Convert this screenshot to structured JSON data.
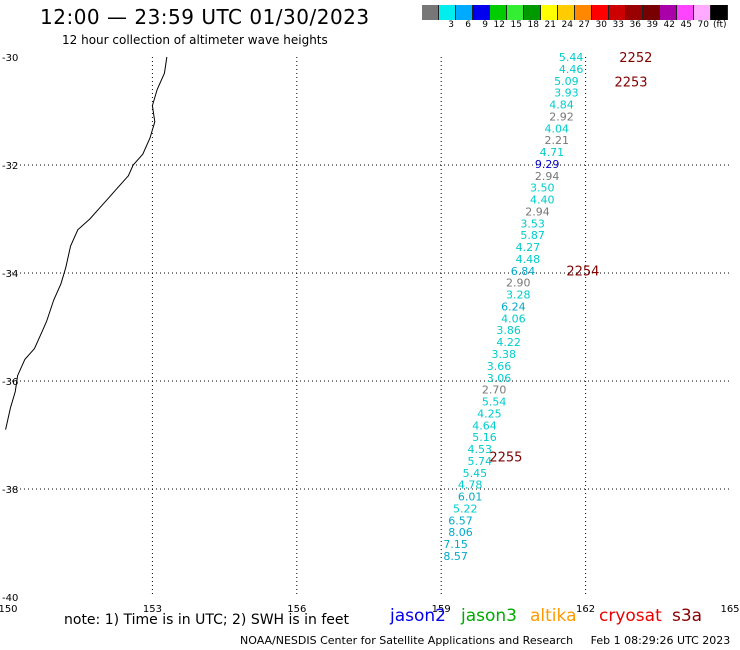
{
  "header": {
    "title": "12:00 — 23:59 UTC 01/30/2023",
    "subtitle": "12 hour collection of altimeter wave heights"
  },
  "color_scale": {
    "colors": [
      "#777777",
      "#00eeee",
      "#00aaff",
      "#0000ee",
      "#00cc00",
      "#33ee33",
      "#009900",
      "#ffff00",
      "#ffcc00",
      "#ff8800",
      "#ff0000",
      "#cc0000",
      "#990000",
      "#770000",
      "#aa00aa",
      "#ff44ff",
      "#ffaaff",
      "#000000"
    ],
    "ticks": [
      "3",
      "6",
      "9",
      "12",
      "15",
      "18",
      "21",
      "24",
      "27",
      "30",
      "33",
      "36",
      "39",
      "42",
      "45",
      "70"
    ],
    "unit": "(ft)"
  },
  "axes": {
    "x_ticks": [
      "150",
      "153",
      "156",
      "159",
      "162",
      "165"
    ],
    "y_ticks": [
      "-30",
      "-32",
      "-34",
      "-36",
      "-38",
      "-40"
    ]
  },
  "map_data": {
    "lon_range": [
      150,
      165
    ],
    "lat_range": [
      -40,
      -30
    ],
    "time_labels": [
      {
        "text": "2252",
        "lon": 162.7,
        "lat": -30.0
      },
      {
        "text": "2253",
        "lon": 162.6,
        "lat": -30.45
      },
      {
        "text": "2254",
        "lon": 161.6,
        "lat": -33.95
      },
      {
        "text": "2255",
        "lon": 160.0,
        "lat": -37.4
      }
    ],
    "swh_points": [
      {
        "lon": 161.7,
        "lat": -30.0,
        "swh": "5.44",
        "color": "#00cccc"
      },
      {
        "lon": 161.7,
        "lat": -30.22,
        "swh": "4.46",
        "color": "#00cccc"
      },
      {
        "lon": 161.6,
        "lat": -30.44,
        "swh": "5.09",
        "color": "#00cccc"
      },
      {
        "lon": 161.6,
        "lat": -30.66,
        "swh": "3.93",
        "color": "#00cccc"
      },
      {
        "lon": 161.5,
        "lat": -30.88,
        "swh": "4.84",
        "color": "#00cccc"
      },
      {
        "lon": 161.5,
        "lat": -31.1,
        "swh": "2.92",
        "color": "#777777"
      },
      {
        "lon": 161.4,
        "lat": -31.32,
        "swh": "4.04",
        "color": "#00cccc"
      },
      {
        "lon": 161.4,
        "lat": -31.54,
        "swh": "2.21",
        "color": "#777777"
      },
      {
        "lon": 161.3,
        "lat": -31.76,
        "swh": "4.71",
        "color": "#00cccc"
      },
      {
        "lon": 161.2,
        "lat": -31.98,
        "swh": "9.29",
        "color": "#0000cc"
      },
      {
        "lon": 161.2,
        "lat": -32.2,
        "swh": "2.94",
        "color": "#777777"
      },
      {
        "lon": 161.1,
        "lat": -32.42,
        "swh": "3.50",
        "color": "#00cccc"
      },
      {
        "lon": 161.1,
        "lat": -32.64,
        "swh": "4.40",
        "color": "#00cccc"
      },
      {
        "lon": 161.0,
        "lat": -32.86,
        "swh": "2.94",
        "color": "#777777"
      },
      {
        "lon": 160.9,
        "lat": -33.08,
        "swh": "3.53",
        "color": "#00cccc"
      },
      {
        "lon": 160.9,
        "lat": -33.3,
        "swh": "5.87",
        "color": "#00cccc"
      },
      {
        "lon": 160.8,
        "lat": -33.52,
        "swh": "4.27",
        "color": "#00cccc"
      },
      {
        "lon": 160.8,
        "lat": -33.74,
        "swh": "4.48",
        "color": "#00cccc"
      },
      {
        "lon": 160.7,
        "lat": -33.96,
        "swh": "6.84",
        "color": "#00aacc"
      },
      {
        "lon": 160.6,
        "lat": -34.18,
        "swh": "2.90",
        "color": "#777777"
      },
      {
        "lon": 160.6,
        "lat": -34.4,
        "swh": "3.28",
        "color": "#00cccc"
      },
      {
        "lon": 160.5,
        "lat": -34.62,
        "swh": "6.24",
        "color": "#00aacc"
      },
      {
        "lon": 160.5,
        "lat": -34.84,
        "swh": "4.06",
        "color": "#00cccc"
      },
      {
        "lon": 160.4,
        "lat": -35.06,
        "swh": "3.86",
        "color": "#00cccc"
      },
      {
        "lon": 160.4,
        "lat": -35.28,
        "swh": "4.22",
        "color": "#00cccc"
      },
      {
        "lon": 160.3,
        "lat": -35.5,
        "swh": "3.38",
        "color": "#00cccc"
      },
      {
        "lon": 160.2,
        "lat": -35.72,
        "swh": "3.66",
        "color": "#00cccc"
      },
      {
        "lon": 160.2,
        "lat": -35.94,
        "swh": "3.06",
        "color": "#00cccc"
      },
      {
        "lon": 160.1,
        "lat": -36.16,
        "swh": "2.70",
        "color": "#777777"
      },
      {
        "lon": 160.1,
        "lat": -36.38,
        "swh": "5.54",
        "color": "#00cccc"
      },
      {
        "lon": 160.0,
        "lat": -36.6,
        "swh": "4.25",
        "color": "#00cccc"
      },
      {
        "lon": 159.9,
        "lat": -36.82,
        "swh": "4.64",
        "color": "#00cccc"
      },
      {
        "lon": 159.9,
        "lat": -37.04,
        "swh": "5.16",
        "color": "#00cccc"
      },
      {
        "lon": 159.8,
        "lat": -37.26,
        "swh": "4.53",
        "color": "#00cccc"
      },
      {
        "lon": 159.8,
        "lat": -37.48,
        "swh": "5.74",
        "color": "#00cccc"
      },
      {
        "lon": 159.7,
        "lat": -37.7,
        "swh": "5.45",
        "color": "#00cccc"
      },
      {
        "lon": 159.6,
        "lat": -37.92,
        "swh": "4.78",
        "color": "#00cccc"
      },
      {
        "lon": 159.6,
        "lat": -38.14,
        "swh": "6.01",
        "color": "#00aacc"
      },
      {
        "lon": 159.5,
        "lat": -38.36,
        "swh": "5.22",
        "color": "#00cccc"
      },
      {
        "lon": 159.4,
        "lat": -38.58,
        "swh": "6.57",
        "color": "#00aacc"
      },
      {
        "lon": 159.4,
        "lat": -38.8,
        "swh": "8.06",
        "color": "#00aacc"
      },
      {
        "lon": 159.3,
        "lat": -39.02,
        "swh": "7.15",
        "color": "#00aacc"
      },
      {
        "lon": 159.3,
        "lat": -39.24,
        "swh": "8.57",
        "color": "#00aacc"
      }
    ],
    "coastline": [
      [
        153.3,
        -30.0
      ],
      [
        153.25,
        -30.3
      ],
      [
        153.1,
        -30.6
      ],
      [
        153.0,
        -30.9
      ],
      [
        153.05,
        -31.2
      ],
      [
        152.95,
        -31.5
      ],
      [
        152.8,
        -31.8
      ],
      [
        152.6,
        -32.0
      ],
      [
        152.5,
        -32.2
      ],
      [
        152.3,
        -32.4
      ],
      [
        152.1,
        -32.6
      ],
      [
        151.9,
        -32.8
      ],
      [
        151.7,
        -33.0
      ],
      [
        151.45,
        -33.2
      ],
      [
        151.3,
        -33.5
      ],
      [
        151.2,
        -33.9
      ],
      [
        151.1,
        -34.2
      ],
      [
        150.95,
        -34.5
      ],
      [
        150.8,
        -34.9
      ],
      [
        150.7,
        -35.1
      ],
      [
        150.55,
        -35.4
      ],
      [
        150.35,
        -35.6
      ],
      [
        150.2,
        -35.9
      ],
      [
        150.15,
        -36.2
      ],
      [
        150.05,
        -36.5
      ],
      [
        149.95,
        -36.9
      ]
    ]
  },
  "footer": {
    "note": "note:  1) Time is in UTC; 2) SWH is in feet",
    "legend": [
      {
        "label": "jason2",
        "color": "#0000ee"
      },
      {
        "label": "jason3",
        "color": "#00aa00"
      },
      {
        "label": "altika",
        "color": "#ff9900"
      },
      {
        "label": "cryosat",
        "color": "#ee0000"
      },
      {
        "label": "s3a",
        "color": "#880000"
      }
    ],
    "credit": "NOAA/NESDIS Center for Satellite Applications and Research",
    "timestamp": "Feb  1 08:29:26 UTC 2023"
  }
}
